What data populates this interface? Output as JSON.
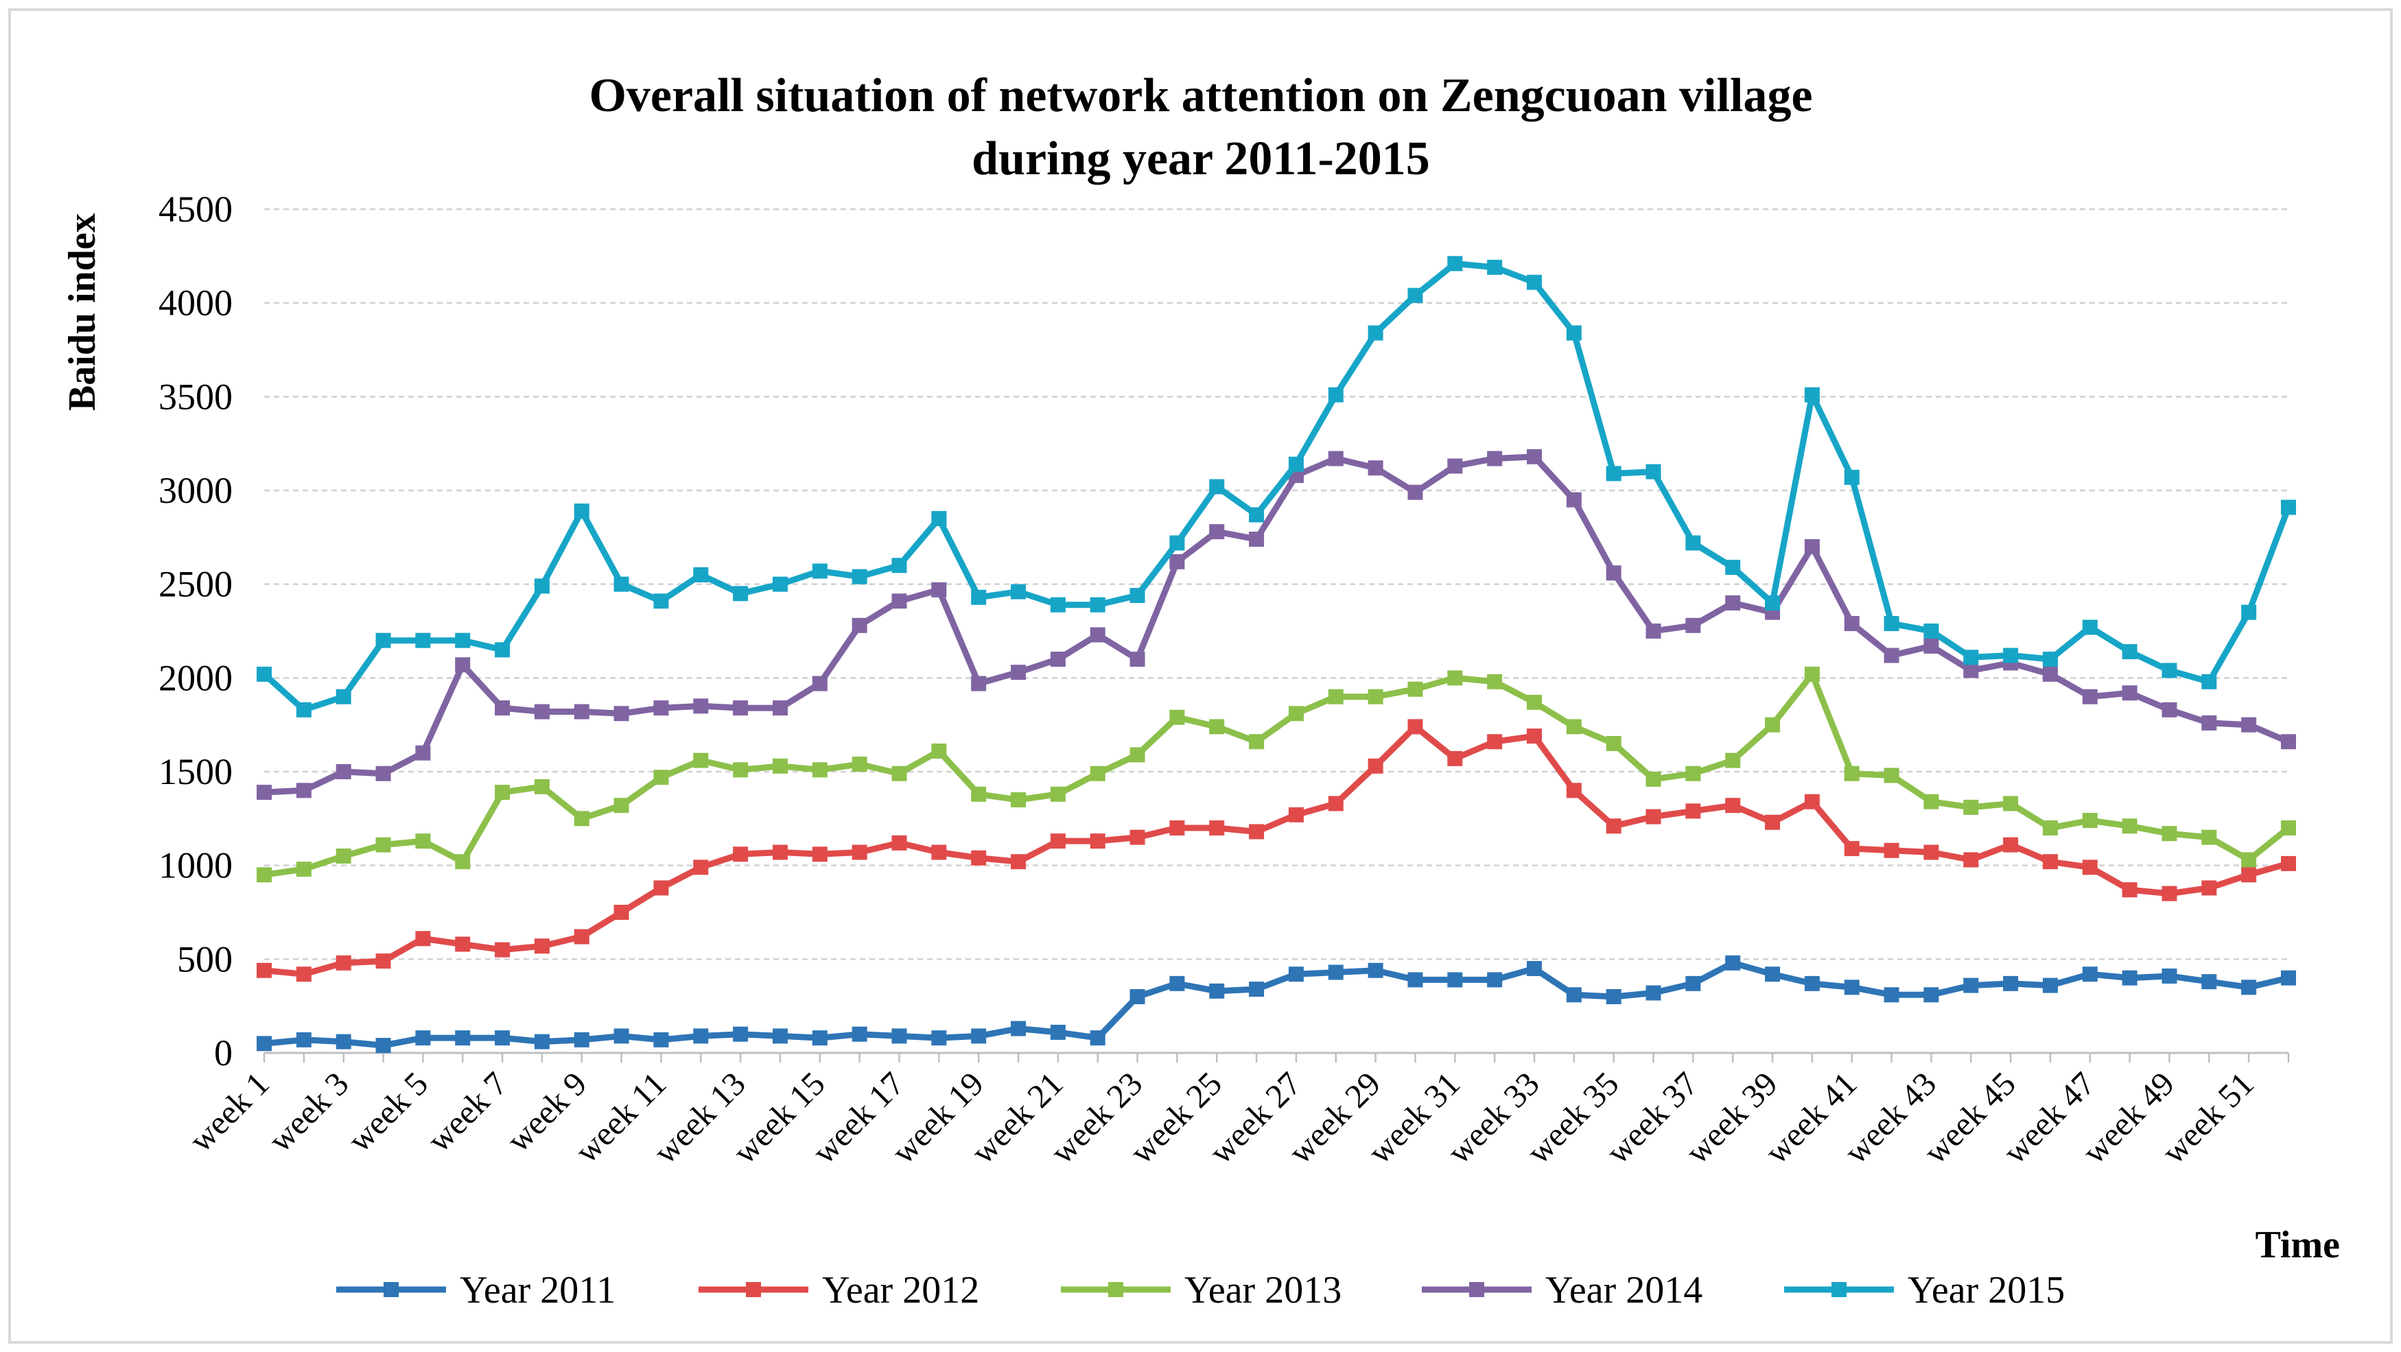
{
  "chart_data": {
    "type": "line",
    "title_lines": [
      "Overall situation of network attention on Zengcuoan village",
      "during year 2011-2015"
    ],
    "ylabel": "Baidu index",
    "xlabel": "Time",
    "ylim": [
      0,
      4500
    ],
    "yticks": [
      "0",
      "500",
      "1000",
      "1500",
      "2000",
      "2500",
      "3000",
      "3500",
      "4000",
      "4500"
    ],
    "categories": [
      "week 1",
      "week 2",
      "week 3",
      "week 4",
      "week 5",
      "week 6",
      "week 7",
      "week 8",
      "week 9",
      "week 10",
      "week 11",
      "week 12",
      "week 13",
      "week 14",
      "week 15",
      "week 16",
      "week 17",
      "week 18",
      "week 19",
      "week 20",
      "week 21",
      "week 22",
      "week 23",
      "week 24",
      "week 25",
      "week 26",
      "week 27",
      "week 28",
      "week 29",
      "week 30",
      "week 31",
      "week 32",
      "week 33",
      "week 34",
      "week 35",
      "week 36",
      "week 37",
      "week 38",
      "week 39",
      "week 40",
      "week 41",
      "week 42",
      "week 43",
      "week 44",
      "week 45",
      "week 46",
      "week 47",
      "week 48",
      "week 49",
      "week 50",
      "week 51",
      "week 52"
    ],
    "tick_labels": [
      "week 1",
      "week 3",
      "week 5",
      "week 7",
      "week 9",
      "week 11",
      "week 13",
      "week 15",
      "week 17",
      "week 19",
      "week 21",
      "week 23",
      "week 25",
      "week 27",
      "week 29",
      "week 31",
      "week 33",
      "week 35",
      "week 37",
      "week 39",
      "week 41",
      "week 43",
      "week 45",
      "week 47",
      "week 49",
      "week 51"
    ],
    "legend_position": "bottom",
    "grid": true,
    "series": [
      {
        "name": "Year 2011",
        "color": "#2E75B6",
        "values": [
          50,
          70,
          60,
          40,
          80,
          80,
          80,
          60,
          70,
          90,
          70,
          90,
          100,
          90,
          80,
          100,
          90,
          80,
          90,
          130,
          110,
          80,
          300,
          370,
          330,
          340,
          420,
          430,
          440,
          390,
          390,
          390,
          450,
          310,
          300,
          320,
          370,
          480,
          420,
          370,
          350,
          310,
          310,
          360,
          370,
          360,
          420,
          400,
          410,
          380,
          350,
          400
        ]
      },
      {
        "name": "Year 2012",
        "color": "#E04B4A",
        "values": [
          440,
          420,
          480,
          490,
          610,
          580,
          550,
          570,
          620,
          750,
          880,
          990,
          1060,
          1070,
          1060,
          1070,
          1120,
          1070,
          1040,
          1020,
          1130,
          1130,
          1150,
          1200,
          1200,
          1180,
          1270,
          1330,
          1530,
          1740,
          1570,
          1660,
          1690,
          1400,
          1210,
          1260,
          1290,
          1320,
          1230,
          1340,
          1090,
          1080,
          1070,
          1030,
          1110,
          1020,
          990,
          870,
          850,
          880,
          950,
          1010
        ]
      },
      {
        "name": "Year 2013",
        "color": "#8CC04A",
        "values": [
          950,
          980,
          1050,
          1110,
          1130,
          1020,
          1390,
          1420,
          1250,
          1320,
          1470,
          1560,
          1510,
          1530,
          1510,
          1540,
          1490,
          1610,
          1380,
          1350,
          1380,
          1490,
          1590,
          1790,
          1740,
          1660,
          1810,
          1900,
          1900,
          1940,
          2000,
          1980,
          1870,
          1740,
          1650,
          1460,
          1490,
          1560,
          1750,
          2020,
          1490,
          1480,
          1340,
          1310,
          1330,
          1200,
          1240,
          1210,
          1170,
          1150,
          1030,
          1200
        ]
      },
      {
        "name": "Year 2014",
        "color": "#8064A2",
        "values": [
          1390,
          1400,
          1500,
          1490,
          1600,
          2070,
          1840,
          1820,
          1820,
          1810,
          1840,
          1850,
          1840,
          1840,
          1970,
          2280,
          2410,
          2470,
          1970,
          2030,
          2100,
          2230,
          2100,
          2620,
          2780,
          2740,
          3080,
          3170,
          3120,
          2990,
          3130,
          3170,
          3180,
          2950,
          2560,
          2250,
          2280,
          2400,
          2350,
          2700,
          2290,
          2120,
          2170,
          2040,
          2080,
          2020,
          1900,
          1920,
          1830,
          1760,
          1750,
          1660
        ]
      },
      {
        "name": "Year 2015",
        "color": "#17A5C7",
        "values": [
          2020,
          1830,
          1900,
          2200,
          2200,
          2200,
          2150,
          2490,
          2890,
          2500,
          2410,
          2550,
          2450,
          2500,
          2570,
          2540,
          2600,
          2850,
          2430,
          2460,
          2390,
          2390,
          2440,
          2720,
          3020,
          2870,
          3140,
          3510,
          3840,
          4040,
          4210,
          4190,
          4110,
          3840,
          3090,
          3100,
          2720,
          2590,
          2400,
          3510,
          3070,
          2290,
          2250,
          2110,
          2120,
          2100,
          2270,
          2140,
          2040,
          1980,
          2350,
          2910
        ]
      }
    ]
  }
}
